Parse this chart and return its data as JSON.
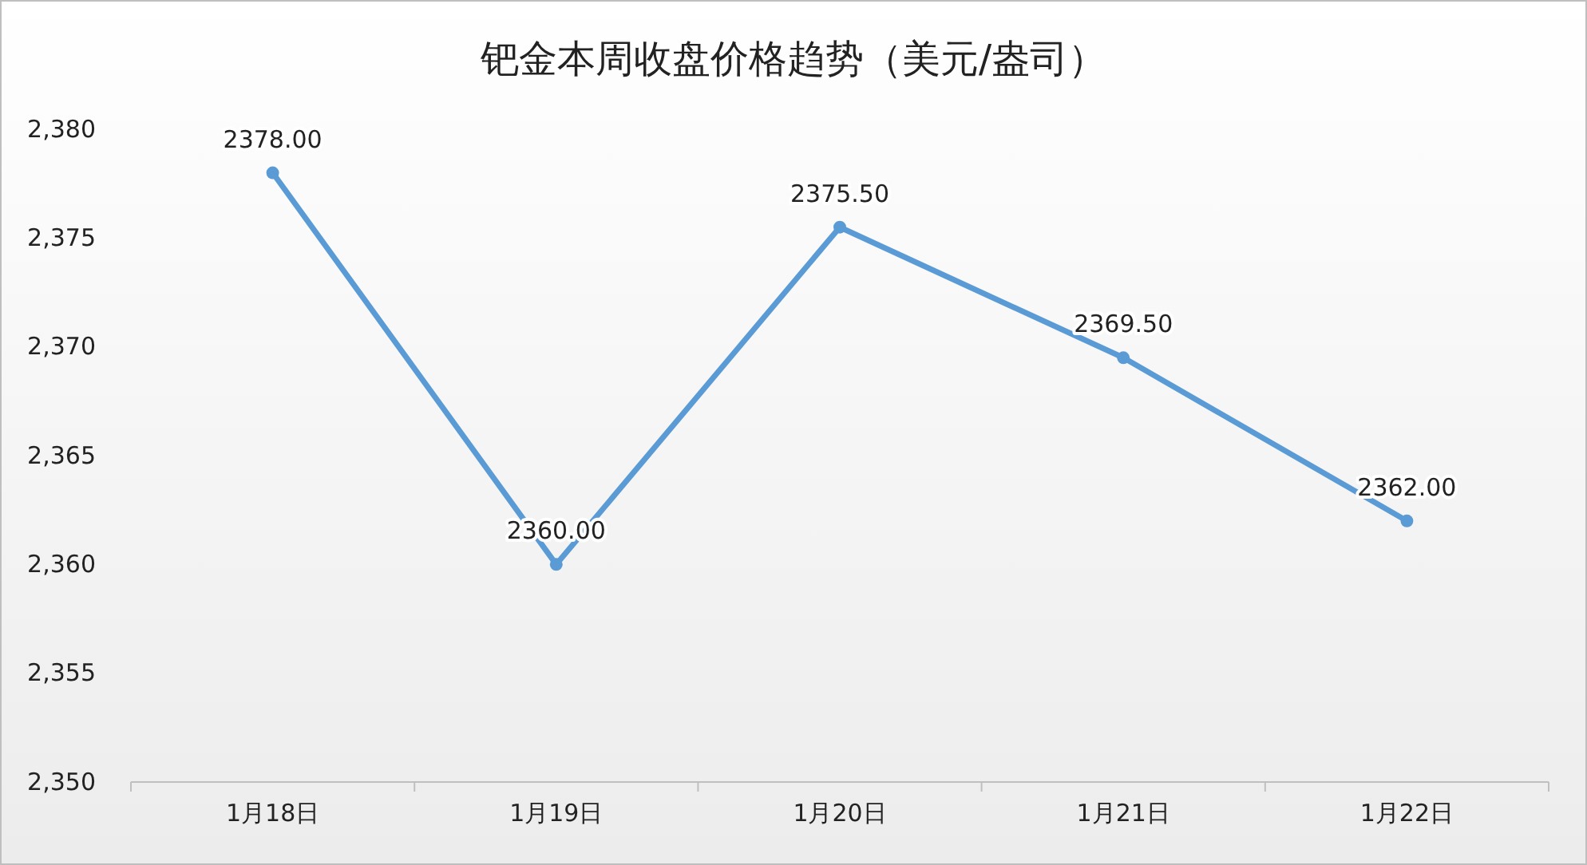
{
  "chart_data": {
    "type": "line",
    "title": "钯金本周收盘价格趋势（美元/盎司）",
    "categories": [
      "1月18日",
      "1月19日",
      "1月20日",
      "1月21日",
      "1月22日"
    ],
    "series": [
      {
        "color": "#5b9bd5",
        "values": [
          2378.0,
          2360.0,
          2375.5,
          2369.5,
          2362.0
        ]
      }
    ],
    "value_labels": [
      "2378.00",
      "2360.00",
      "2375.50",
      "2369.50",
      "2362.00"
    ],
    "ylim": [
      2350,
      2380
    ],
    "yticks": [
      {
        "value": 2350,
        "label": "2,350"
      },
      {
        "value": 2355,
        "label": "2,355"
      },
      {
        "value": 2360,
        "label": "2,360"
      },
      {
        "value": 2365,
        "label": "2,365"
      },
      {
        "value": 2370,
        "label": "2,370"
      },
      {
        "value": 2375,
        "label": "2,375"
      },
      {
        "value": 2380,
        "label": "2,380"
      }
    ],
    "grid": false,
    "marker": "circle",
    "line_style": "solid"
  }
}
